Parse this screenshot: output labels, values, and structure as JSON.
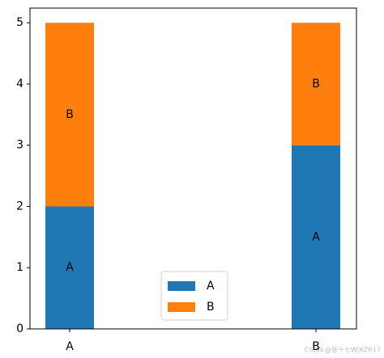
{
  "chart_data": {
    "type": "stacked_bar",
    "categories": [
      "A",
      "B"
    ],
    "series": [
      {
        "name": "A",
        "color": "#1f77b4",
        "values": [
          2,
          3
        ]
      },
      {
        "name": "B",
        "color": "#ff7f0e",
        "values": [
          3,
          2
        ]
      }
    ],
    "ylim": [
      0,
      5.24
    ],
    "yticks": [
      0,
      1,
      2,
      3,
      4,
      5
    ],
    "legend": "lower center",
    "watermark": "CSDN @张十七WJXZR17"
  }
}
